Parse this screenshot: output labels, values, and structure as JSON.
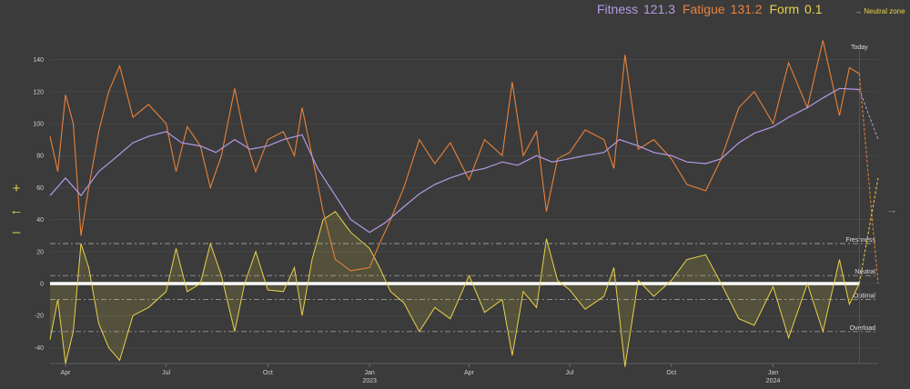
{
  "header": {
    "fitness_label": "Fitness",
    "fitness_value": "121.3",
    "fatigue_label": "Fatigue",
    "fatigue_value": "131.2",
    "form_label": "Form",
    "form_value": "0.1",
    "neutral_zone_label": "→ Neutral zone"
  },
  "controls": {
    "zoom_in_icon": "plus-icon",
    "back_icon": "arrow-left-icon",
    "zoom_out_icon": "minus-icon",
    "next_icon": "arrow-right-icon"
  },
  "colors": {
    "background": "#3b3b3b",
    "fitness": "#b49ae6",
    "fatigue": "#e9823a",
    "form": "#e8d24a",
    "zero_line": "#ffffff",
    "reference_lines": "#9a9a9a"
  },
  "chart_data": {
    "type": "line",
    "x_axis": {
      "type": "date",
      "range": [
        "2022-03-18",
        "2024-04-05"
      ],
      "tick_labels": [
        "Apr",
        "Jul",
        "Oct",
        "Jan",
        "Apr",
        "Jul",
        "Oct",
        "Jan"
      ],
      "tick_dates": [
        "2022-04-01",
        "2022-07-01",
        "2022-10-01",
        "2023-01-01",
        "2023-04-01",
        "2023-07-01",
        "2023-10-01",
        "2024-01-01"
      ],
      "year_labels": [
        {
          "label": "2023",
          "date": "2023-01-01"
        },
        {
          "label": "2024",
          "date": "2024-01-01"
        }
      ]
    },
    "y_axis": {
      "range": [
        -50,
        150
      ],
      "tick_values": [
        -40,
        -20,
        0,
        20,
        40,
        60,
        80,
        100,
        120,
        140
      ]
    },
    "grid": true,
    "reference_lines": [
      {
        "label": "Freshness",
        "value": 25
      },
      {
        "label": "Neutral",
        "value": 5
      },
      {
        "label": "Optimal",
        "value": -10
      },
      {
        "label": "Overload",
        "value": -30
      }
    ],
    "today": {
      "label": "Today",
      "date": "2024-03-19"
    },
    "series": [
      {
        "name": "Fitness",
        "color": "#b49ae6",
        "points": [
          [
            "2022-03-18",
            55
          ],
          [
            "2022-04-01",
            66
          ],
          [
            "2022-04-15",
            55
          ],
          [
            "2022-05-01",
            70
          ],
          [
            "2022-05-15",
            78
          ],
          [
            "2022-06-01",
            88
          ],
          [
            "2022-06-15",
            92
          ],
          [
            "2022-07-01",
            95
          ],
          [
            "2022-07-15",
            88
          ],
          [
            "2022-08-01",
            86
          ],
          [
            "2022-08-15",
            82
          ],
          [
            "2022-09-01",
            90
          ],
          [
            "2022-09-15",
            84
          ],
          [
            "2022-10-01",
            86
          ],
          [
            "2022-10-15",
            90
          ],
          [
            "2022-11-01",
            93
          ],
          [
            "2022-11-15",
            72
          ],
          [
            "2022-12-01",
            55
          ],
          [
            "2022-12-15",
            40
          ],
          [
            "2023-01-01",
            32
          ],
          [
            "2023-01-15",
            38
          ],
          [
            "2023-02-01",
            48
          ],
          [
            "2023-02-15",
            56
          ],
          [
            "2023-03-01",
            62
          ],
          [
            "2023-03-15",
            66
          ],
          [
            "2023-04-01",
            70
          ],
          [
            "2023-04-15",
            72
          ],
          [
            "2023-05-01",
            76
          ],
          [
            "2023-05-15",
            74
          ],
          [
            "2023-06-01",
            80
          ],
          [
            "2023-06-15",
            76
          ],
          [
            "2023-07-01",
            78
          ],
          [
            "2023-07-15",
            80
          ],
          [
            "2023-08-01",
            82
          ],
          [
            "2023-08-15",
            90
          ],
          [
            "2023-09-01",
            86
          ],
          [
            "2023-09-15",
            82
          ],
          [
            "2023-10-01",
            80
          ],
          [
            "2023-10-15",
            76
          ],
          [
            "2023-11-01",
            75
          ],
          [
            "2023-11-15",
            78
          ],
          [
            "2023-12-01",
            88
          ],
          [
            "2023-12-15",
            94
          ],
          [
            "2024-01-01",
            98
          ],
          [
            "2024-01-15",
            104
          ],
          [
            "2024-02-01",
            110
          ],
          [
            "2024-02-15",
            116
          ],
          [
            "2024-03-01",
            122
          ],
          [
            "2024-03-19",
            121.3
          ]
        ]
      },
      {
        "name": "Fatigue",
        "color": "#e9823a",
        "points": [
          [
            "2022-03-18",
            92
          ],
          [
            "2022-03-25",
            70
          ],
          [
            "2022-04-01",
            118
          ],
          [
            "2022-04-08",
            100
          ],
          [
            "2022-04-15",
            30
          ],
          [
            "2022-04-22",
            60
          ],
          [
            "2022-05-01",
            95
          ],
          [
            "2022-05-10",
            120
          ],
          [
            "2022-05-20",
            136
          ],
          [
            "2022-06-01",
            104
          ],
          [
            "2022-06-15",
            112
          ],
          [
            "2022-07-01",
            100
          ],
          [
            "2022-07-10",
            70
          ],
          [
            "2022-07-20",
            98
          ],
          [
            "2022-08-01",
            86
          ],
          [
            "2022-08-10",
            60
          ],
          [
            "2022-08-20",
            80
          ],
          [
            "2022-09-01",
            122
          ],
          [
            "2022-09-10",
            92
          ],
          [
            "2022-09-20",
            70
          ],
          [
            "2022-10-01",
            90
          ],
          [
            "2022-10-15",
            95
          ],
          [
            "2022-10-25",
            80
          ],
          [
            "2022-11-01",
            110
          ],
          [
            "2022-11-10",
            80
          ],
          [
            "2022-11-20",
            45
          ],
          [
            "2022-12-01",
            15
          ],
          [
            "2022-12-15",
            8
          ],
          [
            "2023-01-01",
            10
          ],
          [
            "2023-01-10",
            25
          ],
          [
            "2023-01-20",
            40
          ],
          [
            "2023-02-01",
            60
          ],
          [
            "2023-02-15",
            90
          ],
          [
            "2023-03-01",
            75
          ],
          [
            "2023-03-15",
            88
          ],
          [
            "2023-04-01",
            65
          ],
          [
            "2023-04-15",
            90
          ],
          [
            "2023-05-01",
            80
          ],
          [
            "2023-05-10",
            126
          ],
          [
            "2023-05-20",
            80
          ],
          [
            "2023-06-01",
            95
          ],
          [
            "2023-06-10",
            45
          ],
          [
            "2023-06-20",
            78
          ],
          [
            "2023-07-01",
            82
          ],
          [
            "2023-07-15",
            96
          ],
          [
            "2023-08-01",
            90
          ],
          [
            "2023-08-10",
            72
          ],
          [
            "2023-08-20",
            143
          ],
          [
            "2023-09-01",
            84
          ],
          [
            "2023-09-15",
            90
          ],
          [
            "2023-10-01",
            78
          ],
          [
            "2023-10-15",
            62
          ],
          [
            "2023-11-01",
            58
          ],
          [
            "2023-11-15",
            78
          ],
          [
            "2023-12-01",
            110
          ],
          [
            "2023-12-15",
            120
          ],
          [
            "2024-01-01",
            100
          ],
          [
            "2024-01-15",
            138
          ],
          [
            "2024-02-01",
            110
          ],
          [
            "2024-02-15",
            152
          ],
          [
            "2024-03-01",
            105
          ],
          [
            "2024-03-10",
            135
          ],
          [
            "2024-03-19",
            131.2
          ]
        ]
      },
      {
        "name": "Form",
        "color": "#e8d24a",
        "points": [
          [
            "2022-03-18",
            -35
          ],
          [
            "2022-03-25",
            -10
          ],
          [
            "2022-04-01",
            -50
          ],
          [
            "2022-04-08",
            -30
          ],
          [
            "2022-04-15",
            25
          ],
          [
            "2022-04-22",
            10
          ],
          [
            "2022-05-01",
            -25
          ],
          [
            "2022-05-10",
            -40
          ],
          [
            "2022-05-20",
            -48
          ],
          [
            "2022-06-01",
            -20
          ],
          [
            "2022-06-15",
            -15
          ],
          [
            "2022-07-01",
            -5
          ],
          [
            "2022-07-10",
            22
          ],
          [
            "2022-07-20",
            -5
          ],
          [
            "2022-08-01",
            0
          ],
          [
            "2022-08-10",
            25
          ],
          [
            "2022-08-20",
            5
          ],
          [
            "2022-09-01",
            -30
          ],
          [
            "2022-09-10",
            0
          ],
          [
            "2022-09-20",
            20
          ],
          [
            "2022-10-01",
            -4
          ],
          [
            "2022-10-15",
            -5
          ],
          [
            "2022-10-25",
            10
          ],
          [
            "2022-11-01",
            -20
          ],
          [
            "2022-11-10",
            15
          ],
          [
            "2022-11-20",
            40
          ],
          [
            "2022-12-01",
            45
          ],
          [
            "2022-12-15",
            32
          ],
          [
            "2023-01-01",
            22
          ],
          [
            "2023-01-10",
            10
          ],
          [
            "2023-01-20",
            -5
          ],
          [
            "2023-02-01",
            -12
          ],
          [
            "2023-02-15",
            -30
          ],
          [
            "2023-03-01",
            -15
          ],
          [
            "2023-03-15",
            -22
          ],
          [
            "2023-04-01",
            5
          ],
          [
            "2023-04-15",
            -18
          ],
          [
            "2023-05-01",
            -10
          ],
          [
            "2023-05-10",
            -45
          ],
          [
            "2023-05-20",
            -5
          ],
          [
            "2023-06-01",
            -15
          ],
          [
            "2023-06-10",
            28
          ],
          [
            "2023-06-20",
            2
          ],
          [
            "2023-07-01",
            -4
          ],
          [
            "2023-07-15",
            -16
          ],
          [
            "2023-08-01",
            -8
          ],
          [
            "2023-08-10",
            10
          ],
          [
            "2023-08-20",
            -52
          ],
          [
            "2023-09-01",
            2
          ],
          [
            "2023-09-15",
            -8
          ],
          [
            "2023-10-01",
            2
          ],
          [
            "2023-10-15",
            15
          ],
          [
            "2023-11-01",
            18
          ],
          [
            "2023-11-15",
            0
          ],
          [
            "2023-12-01",
            -22
          ],
          [
            "2023-12-15",
            -26
          ],
          [
            "2024-01-01",
            -2
          ],
          [
            "2024-01-15",
            -34
          ],
          [
            "2024-02-01",
            0
          ],
          [
            "2024-02-15",
            -30
          ],
          [
            "2024-03-01",
            15
          ],
          [
            "2024-03-10",
            -13
          ],
          [
            "2024-03-19",
            0.1
          ]
        ]
      }
    ],
    "projection": {
      "fitness": [
        [
          "2024-03-19",
          121.3
        ],
        [
          "2024-04-05",
          90
        ]
      ],
      "fatigue": [
        [
          "2024-03-19",
          131.2
        ],
        [
          "2024-04-01",
          30
        ],
        [
          "2024-04-05",
          0
        ]
      ],
      "form": [
        [
          "2024-03-19",
          0.1
        ],
        [
          "2024-04-05",
          66
        ]
      ]
    }
  }
}
